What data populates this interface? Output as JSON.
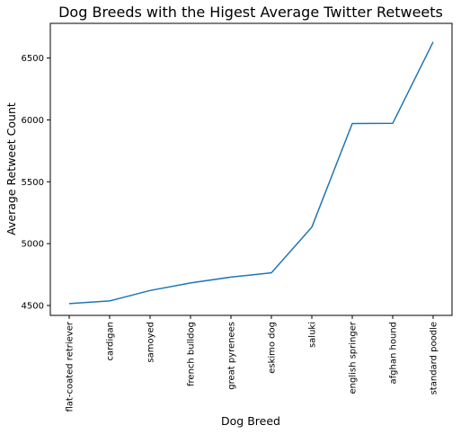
{
  "chart_data": {
    "type": "line",
    "title": "Dog Breeds with the Higest Average Twitter Retweets",
    "xlabel": "Dog Breed",
    "ylabel": "Average Retweet Count",
    "categories": [
      "flat-coated retriever",
      "cardigan",
      "samoyed",
      "french bulldog",
      "great pyrenees",
      "eskimo dog",
      "saluki",
      "english springer",
      "afghan hound",
      "standard poodle"
    ],
    "values": [
      4515,
      4537,
      4621,
      4682,
      4729,
      4764,
      5133,
      5970,
      5972,
      6630
    ],
    "ylim": [
      4420,
      6780
    ],
    "yticks": [
      4500,
      5000,
      5500,
      6000,
      6500
    ],
    "grid": false,
    "line_color": "#1f77b4"
  }
}
